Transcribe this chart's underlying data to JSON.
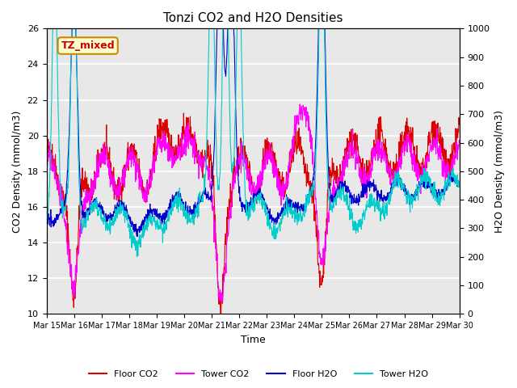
{
  "title": "Tonzi CO2 and H2O Densities",
  "xlabel": "Time",
  "ylabel_left": "CO2 Density (mmol/m3)",
  "ylabel_right": "H2O Density (mmol/m3)",
  "ylim_left": [
    10,
    26
  ],
  "ylim_right": [
    0,
    1000
  ],
  "yticks_left": [
    10,
    12,
    14,
    16,
    18,
    20,
    22,
    24,
    26
  ],
  "yticks_right": [
    0,
    100,
    200,
    300,
    400,
    500,
    600,
    700,
    800,
    900,
    1000
  ],
  "xtick_labels": [
    "Mar 15",
    "Mar 16",
    "Mar 17",
    "Mar 18",
    "Mar 19",
    "Mar 20",
    "Mar 21",
    "Mar 22",
    "Mar 23",
    "Mar 24",
    "Mar 25",
    "Mar 26",
    "Mar 27",
    "Mar 28",
    "Mar 29",
    "Mar 30"
  ],
  "annotation_text": "TZ_mixed",
  "annotation_color": "#cc0000",
  "annotation_bg": "#ffffcc",
  "annotation_border": "#cc8800",
  "floor_co2_color": "#dd0000",
  "tower_co2_color": "#ff00ff",
  "floor_h2o_color": "#0000cc",
  "tower_h2o_color": "#00cccc",
  "legend_labels": [
    "Floor CO2",
    "Tower CO2",
    "Floor H2O",
    "Tower H2O"
  ],
  "bg_color": "#e8e8e8",
  "grid_color": "#ffffff",
  "seed": 42
}
